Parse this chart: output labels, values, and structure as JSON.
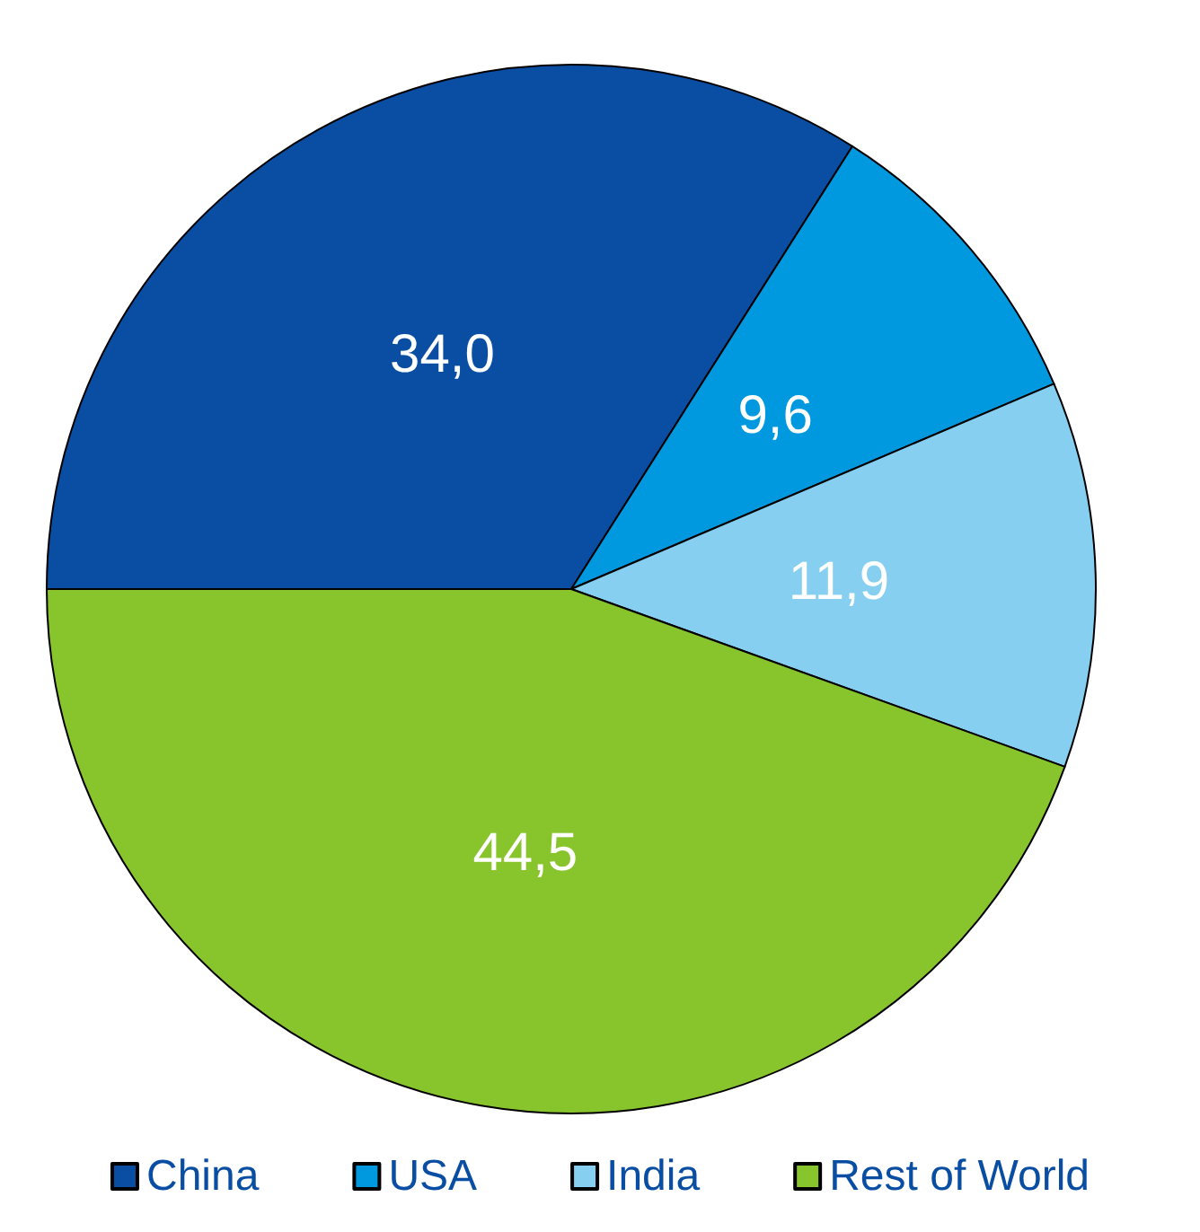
{
  "chart_data": {
    "type": "pie",
    "categories": [
      "China",
      "USA",
      "India",
      "Rest of World"
    ],
    "values": [
      34.0,
      9.6,
      11.9,
      44.5
    ],
    "value_labels": [
      "34,0",
      "9,6",
      "11,9",
      "44,5"
    ],
    "colors": [
      "#0a4ea3",
      "#0099e0",
      "#87cff0",
      "#88c42c"
    ],
    "legend": "bottom"
  }
}
